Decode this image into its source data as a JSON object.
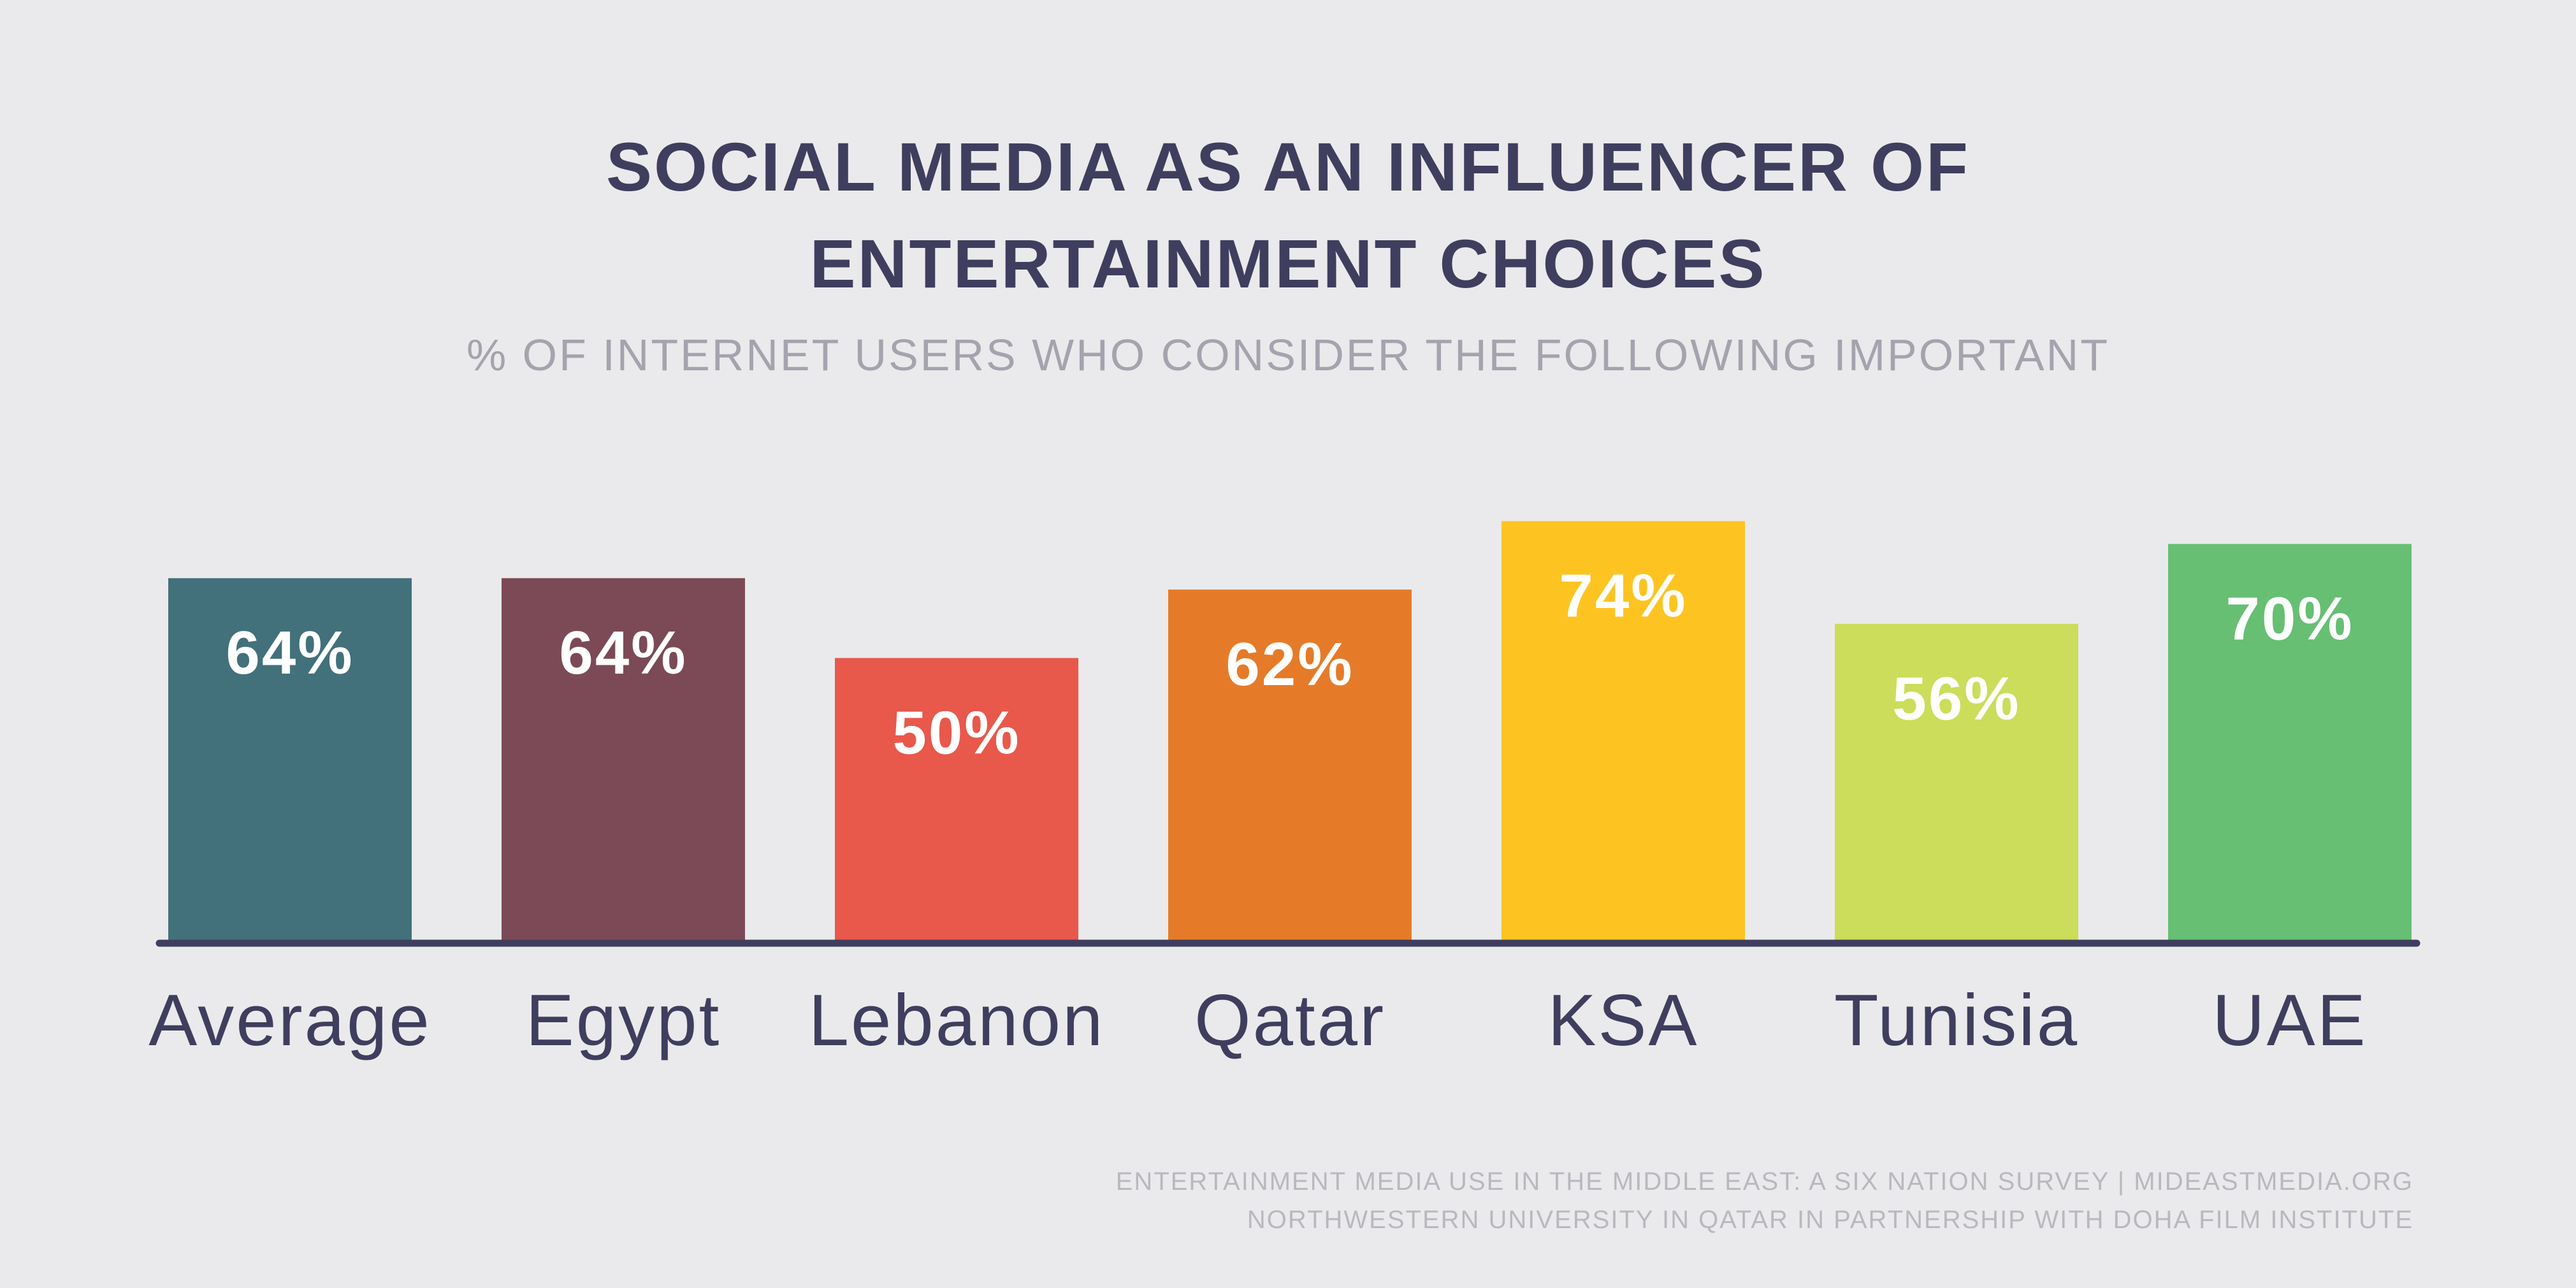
{
  "chart_data": {
    "type": "bar",
    "title_lines": [
      "SOCIAL MEDIA AS AN INFLUENCER OF",
      "ENTERTAINMENT CHOICES"
    ],
    "subtitle": "% OF INTERNET USERS WHO CONSIDER THE FOLLOWING IMPORTANT",
    "categories": [
      "Average",
      "Egypt",
      "Lebanon",
      "Qatar",
      "KSA",
      "Tunisia",
      "UAE"
    ],
    "values": [
      64,
      64,
      50,
      62,
      74,
      56,
      70
    ],
    "value_labels": [
      "64%",
      "64%",
      "50%",
      "62%",
      "74%",
      "56%",
      "70%"
    ],
    "colors": [
      "#42717b",
      "#7c4a57",
      "#e8584b",
      "#e57b28",
      "#fdc421",
      "#cbdd5a",
      "#66bf72"
    ],
    "xlabel": "",
    "ylabel": "",
    "ylim": [
      0,
      100
    ],
    "grid": false,
    "legend": "none",
    "axis_color": "#3f3e5e"
  },
  "source": {
    "line1": "ENTERTAINMENT MEDIA USE IN THE MIDDLE EAST: A SIX NATION SURVEY | MIDEASTMEDIA.ORG",
    "line2": "NORTHWESTERN UNIVERSITY IN QATAR IN PARTNERSHIP WITH DOHA FILM INSTITUTE"
  }
}
